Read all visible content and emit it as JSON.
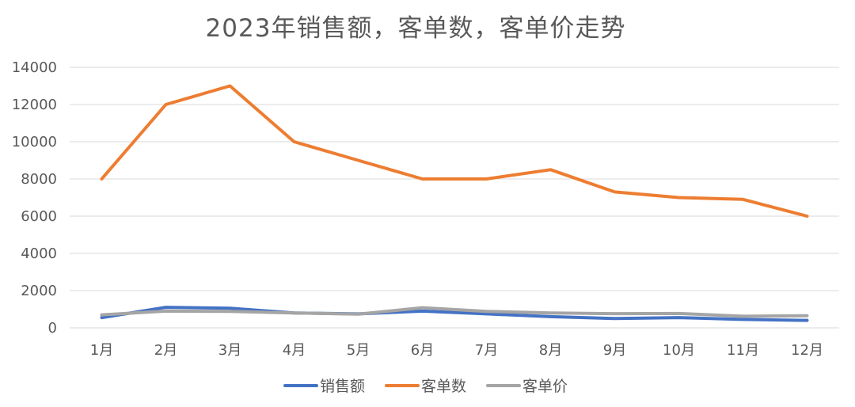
{
  "chart_data": {
    "type": "line",
    "title": "2023年销售额，客单数，客单价走势",
    "categories": [
      "1月",
      "2月",
      "3月",
      "4月",
      "5月",
      "6月",
      "7月",
      "8月",
      "9月",
      "10月",
      "11月",
      "12月"
    ],
    "ylim": [
      0,
      14000
    ],
    "yticks": [
      0,
      2000,
      4000,
      6000,
      8000,
      10000,
      12000,
      14000
    ],
    "grid": "horizontal",
    "legend_position": "bottom",
    "series": [
      {
        "name": "销售额",
        "color": "#4472C4",
        "values": [
          550,
          1100,
          1050,
          800,
          750,
          900,
          750,
          600,
          500,
          550,
          450,
          400
        ]
      },
      {
        "name": "客单数",
        "color": "#ED7D31",
        "values": [
          8000,
          12000,
          13000,
          10000,
          9000,
          8000,
          8000,
          8500,
          7300,
          7000,
          6900,
          6000
        ]
      },
      {
        "name": "客单价",
        "color": "#A5A5A5",
        "values": [
          700,
          900,
          880,
          800,
          730,
          1080,
          880,
          800,
          760,
          770,
          620,
          650
        ]
      }
    ]
  }
}
